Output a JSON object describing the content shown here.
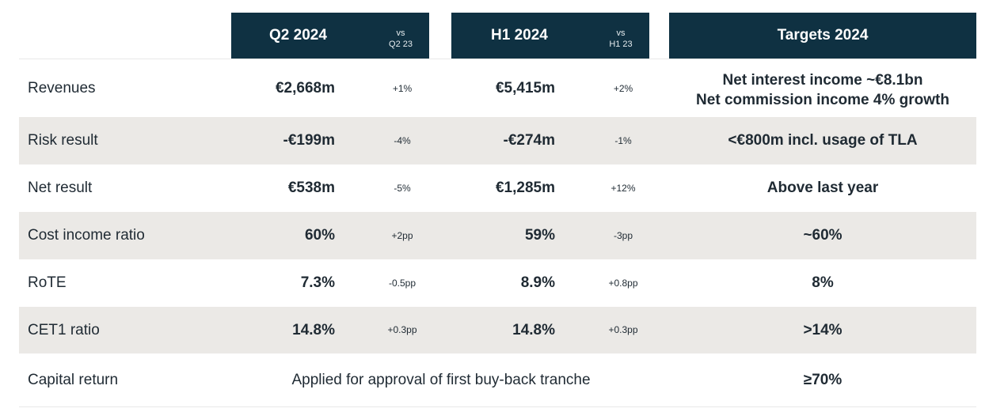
{
  "header": {
    "q2_title": "Q2 2024",
    "q2_vs_line1": "vs",
    "q2_vs_line2": "Q2 23",
    "h1_title": "H1 2024",
    "h1_vs_line1": "vs",
    "h1_vs_line2": "H1 23",
    "targets_title": "Targets 2024"
  },
  "rows": [
    {
      "label": "Revenues",
      "q2_value": "€2,668m",
      "q2_change": "+1%",
      "h1_value": "€5,415m",
      "h1_change": "+2%",
      "target_line1": "Net interest income ~€8.1bn",
      "target_line2": "Net commission income 4% growth"
    },
    {
      "label": "Risk result",
      "q2_value": "-€199m",
      "q2_change": "-4%",
      "h1_value": "-€274m",
      "h1_change": "-1%",
      "target": "<€800m incl. usage of TLA"
    },
    {
      "label": "Net result",
      "q2_value": "€538m",
      "q2_change": "-5%",
      "h1_value": "€1,285m",
      "h1_change": "+12%",
      "target": "Above last year"
    },
    {
      "label": "Cost income ratio",
      "q2_value": "60%",
      "q2_change": "+2pp",
      "h1_value": "59%",
      "h1_change": "-3pp",
      "target": "~60%"
    },
    {
      "label": "RoTE",
      "q2_value": "7.3%",
      "q2_change": "-0.5pp",
      "h1_value": "8.9%",
      "h1_change": "+0.8pp",
      "target": "8%"
    },
    {
      "label": "CET1 ratio",
      "q2_value": "14.8%",
      "q2_change": "+0.3pp",
      "h1_value": "14.8%",
      "h1_change": "+0.3pp",
      "target": ">14%"
    },
    {
      "label": "Capital return",
      "span_text": "Applied for approval of first buy-back tranche",
      "target": "≥70%"
    }
  ],
  "colors": {
    "header_bg": "#0f3142",
    "shaded_row": "#ebe9e6",
    "text": "#1f2a33"
  }
}
